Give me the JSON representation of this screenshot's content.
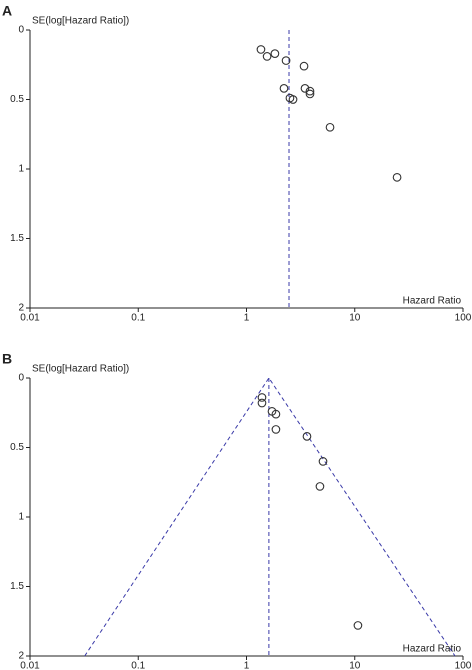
{
  "chart_data": [
    {
      "type": "scatter",
      "panel_label": "A",
      "y_label": "SE(log[Hazard Ratio])",
      "x_label": "Hazard Ratio",
      "x_log": true,
      "y_inverted": true,
      "marker_color": "#333333",
      "line_color": "#3a3aa8",
      "xlim": [
        0.01,
        100
      ],
      "xticks": [
        0.01,
        0.1,
        1,
        10,
        100
      ],
      "ylim": [
        0,
        2
      ],
      "yticks": [
        0,
        0.5,
        1,
        1.5,
        2
      ],
      "x": [
        1.36,
        1.55,
        1.83,
        2.32,
        2.22,
        3.4,
        3.47,
        3.86,
        3.86,
        2.52,
        2.69,
        5.91,
        24.6
      ],
      "y": [
        0.14,
        0.19,
        0.17,
        0.22,
        0.42,
        0.26,
        0.42,
        0.44,
        0.46,
        0.49,
        0.5,
        0.7,
        1.06
      ],
      "reference_x": 2.47
    },
    {
      "type": "scatter",
      "panel_label": "B",
      "y_label": "SE(log[Hazard Ratio])",
      "x_label": "Hazard Ratio",
      "x_log": true,
      "y_inverted": true,
      "marker_color": "#333333",
      "line_color": "#3a3aa8",
      "xlim": [
        0.01,
        100
      ],
      "xticks": [
        0.01,
        0.1,
        1,
        10,
        100
      ],
      "ylim": [
        0,
        2
      ],
      "yticks": [
        0,
        0.5,
        1,
        1.5,
        2
      ],
      "x": [
        1.39,
        1.39,
        1.72,
        1.87,
        1.87,
        3.62,
        5.09,
        4.77,
        10.7
      ],
      "y": [
        0.14,
        0.18,
        0.24,
        0.26,
        0.37,
        0.42,
        0.6,
        0.78,
        1.78
      ],
      "reference_x": 1.61,
      "funnel": {
        "x": [
          0.032,
          1.61,
          84.4
        ],
        "y": [
          2,
          0,
          2
        ]
      }
    }
  ]
}
